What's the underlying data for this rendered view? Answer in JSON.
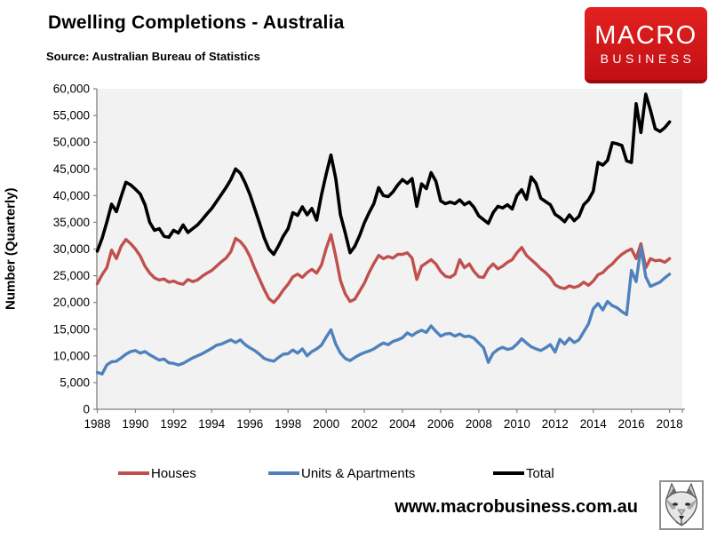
{
  "header": {
    "title": "Dwelling Completions - Australia",
    "source": "Source: Australian Bureau of Statistics"
  },
  "logo": {
    "line1": "MACRO",
    "line2": "BUSINESS",
    "bg_color": "#d4161b",
    "text_color": "#ffffff"
  },
  "footer": {
    "website": "www.macrobusiness.com.au",
    "logo_icon": "wolf-sketch-icon"
  },
  "chart_data": {
    "type": "line",
    "title": "Dwelling Completions - Australia",
    "source": "Source: Australian Bureau of Statistics",
    "xlabel": "",
    "ylabel": "Number (Quarterly)",
    "ylim": [
      0,
      60000
    ],
    "ytick_step": 5000,
    "xticks": [
      1988,
      1990,
      1992,
      1994,
      1996,
      1998,
      2000,
      2002,
      2004,
      2006,
      2008,
      2010,
      2012,
      2014,
      2016,
      2018
    ],
    "x_start": 1988.0,
    "x_step": 0.25,
    "grid": false,
    "plot_bg": "#f2f2f2",
    "axis_color": "#7f7f7f",
    "legend_position": "bottom",
    "series": [
      {
        "name": "Houses",
        "color": "#C0504D",
        "stroke_width": 3.4,
        "values": [
          23500,
          25200,
          26500,
          29800,
          28200,
          30500,
          31800,
          31000,
          30000,
          28700,
          26800,
          25500,
          24600,
          24200,
          24400,
          23800,
          24000,
          23600,
          23400,
          24300,
          23900,
          24200,
          24900,
          25500,
          26000,
          26800,
          27600,
          28300,
          29500,
          32000,
          31400,
          30300,
          28600,
          26400,
          24400,
          22400,
          20700,
          20000,
          21000,
          22300,
          23400,
          24800,
          25300,
          24700,
          25600,
          26200,
          25500,
          27000,
          30100,
          32700,
          28600,
          24100,
          21600,
          20200,
          20600,
          22100,
          23600,
          25600,
          27300,
          28800,
          28200,
          28600,
          28300,
          29000,
          29000,
          29300,
          28300,
          24300,
          26800,
          27400,
          28000,
          27200,
          25800,
          24900,
          24700,
          25300,
          28000,
          26500,
          27200,
          25800,
          24800,
          24700,
          26300,
          27200,
          26300,
          26800,
          27500,
          28000,
          29300,
          30300,
          28800,
          28000,
          27200,
          26300,
          25600,
          24700,
          23300,
          22800,
          22600,
          23100,
          22800,
          23100,
          23800,
          23200,
          24000,
          25200,
          25600,
          26500,
          27200,
          28200,
          29000,
          29600,
          30000,
          28200,
          31000,
          26500,
          28200,
          27800,
          27900,
          27500,
          28200
        ]
      },
      {
        "name": "Units & Apartments",
        "color": "#4F81BD",
        "stroke_width": 3.4,
        "values": [
          6900,
          6600,
          8300,
          8900,
          9000,
          9600,
          10300,
          10800,
          11000,
          10500,
          10800,
          10200,
          9700,
          9200,
          9400,
          8700,
          8600,
          8300,
          8600,
          9100,
          9600,
          10000,
          10400,
          10900,
          11400,
          12000,
          12200,
          12600,
          13000,
          12500,
          13000,
          12100,
          11500,
          11000,
          10300,
          9500,
          9200,
          9000,
          9700,
          10300,
          10400,
          11100,
          10500,
          11300,
          10000,
          10800,
          11300,
          12000,
          13500,
          14900,
          12200,
          10500,
          9500,
          9100,
          9700,
          10200,
          10600,
          10900,
          11300,
          11900,
          12400,
          12100,
          12700,
          13000,
          13400,
          14300,
          13800,
          14400,
          14800,
          14400,
          15600,
          14600,
          13700,
          14100,
          14200,
          13700,
          14100,
          13600,
          13700,
          13300,
          12400,
          11500,
          8800,
          10500,
          11200,
          11600,
          11200,
          11400,
          12200,
          13200,
          12400,
          11700,
          11300,
          11000,
          11500,
          12100,
          10700,
          13100,
          12200,
          13300,
          12500,
          13000,
          14500,
          16000,
          18800,
          19800,
          18600,
          20200,
          19400,
          19000,
          18300,
          17700,
          26000,
          23900,
          30400,
          24800,
          23000,
          23400,
          23800,
          24600,
          25300
        ]
      },
      {
        "name": "Total",
        "color": "#000000",
        "stroke_width": 3.6,
        "values": [
          29600,
          32000,
          35000,
          38400,
          37000,
          39800,
          42500,
          42000,
          41200,
          40300,
          38300,
          35000,
          33500,
          33800,
          32400,
          32200,
          33500,
          33000,
          34500,
          33100,
          33800,
          34500,
          35500,
          36600,
          37600,
          38900,
          40200,
          41500,
          43000,
          45000,
          44200,
          42400,
          40200,
          37600,
          34900,
          32100,
          30000,
          29000,
          30600,
          32400,
          33800,
          36800,
          36300,
          37900,
          36400,
          37600,
          35400,
          40100,
          44000,
          47600,
          43200,
          36400,
          33000,
          29300,
          30500,
          32500,
          34900,
          36800,
          38500,
          41500,
          40000,
          39800,
          40700,
          42000,
          43000,
          42300,
          43200,
          38000,
          42200,
          41300,
          44300,
          42700,
          39000,
          38500,
          38800,
          38500,
          39200,
          38300,
          38800,
          37800,
          36200,
          35500,
          34800,
          36800,
          38000,
          37700,
          38300,
          37500,
          40000,
          41100,
          39300,
          43500,
          42300,
          39500,
          38900,
          38300,
          36500,
          35900,
          35100,
          36400,
          35300,
          36100,
          38300,
          39200,
          40800,
          46200,
          45700,
          46600,
          49900,
          49700,
          49400,
          46500,
          46200,
          57200,
          51800,
          59000,
          56000,
          52500,
          52000,
          52700,
          53800
        ]
      }
    ]
  }
}
